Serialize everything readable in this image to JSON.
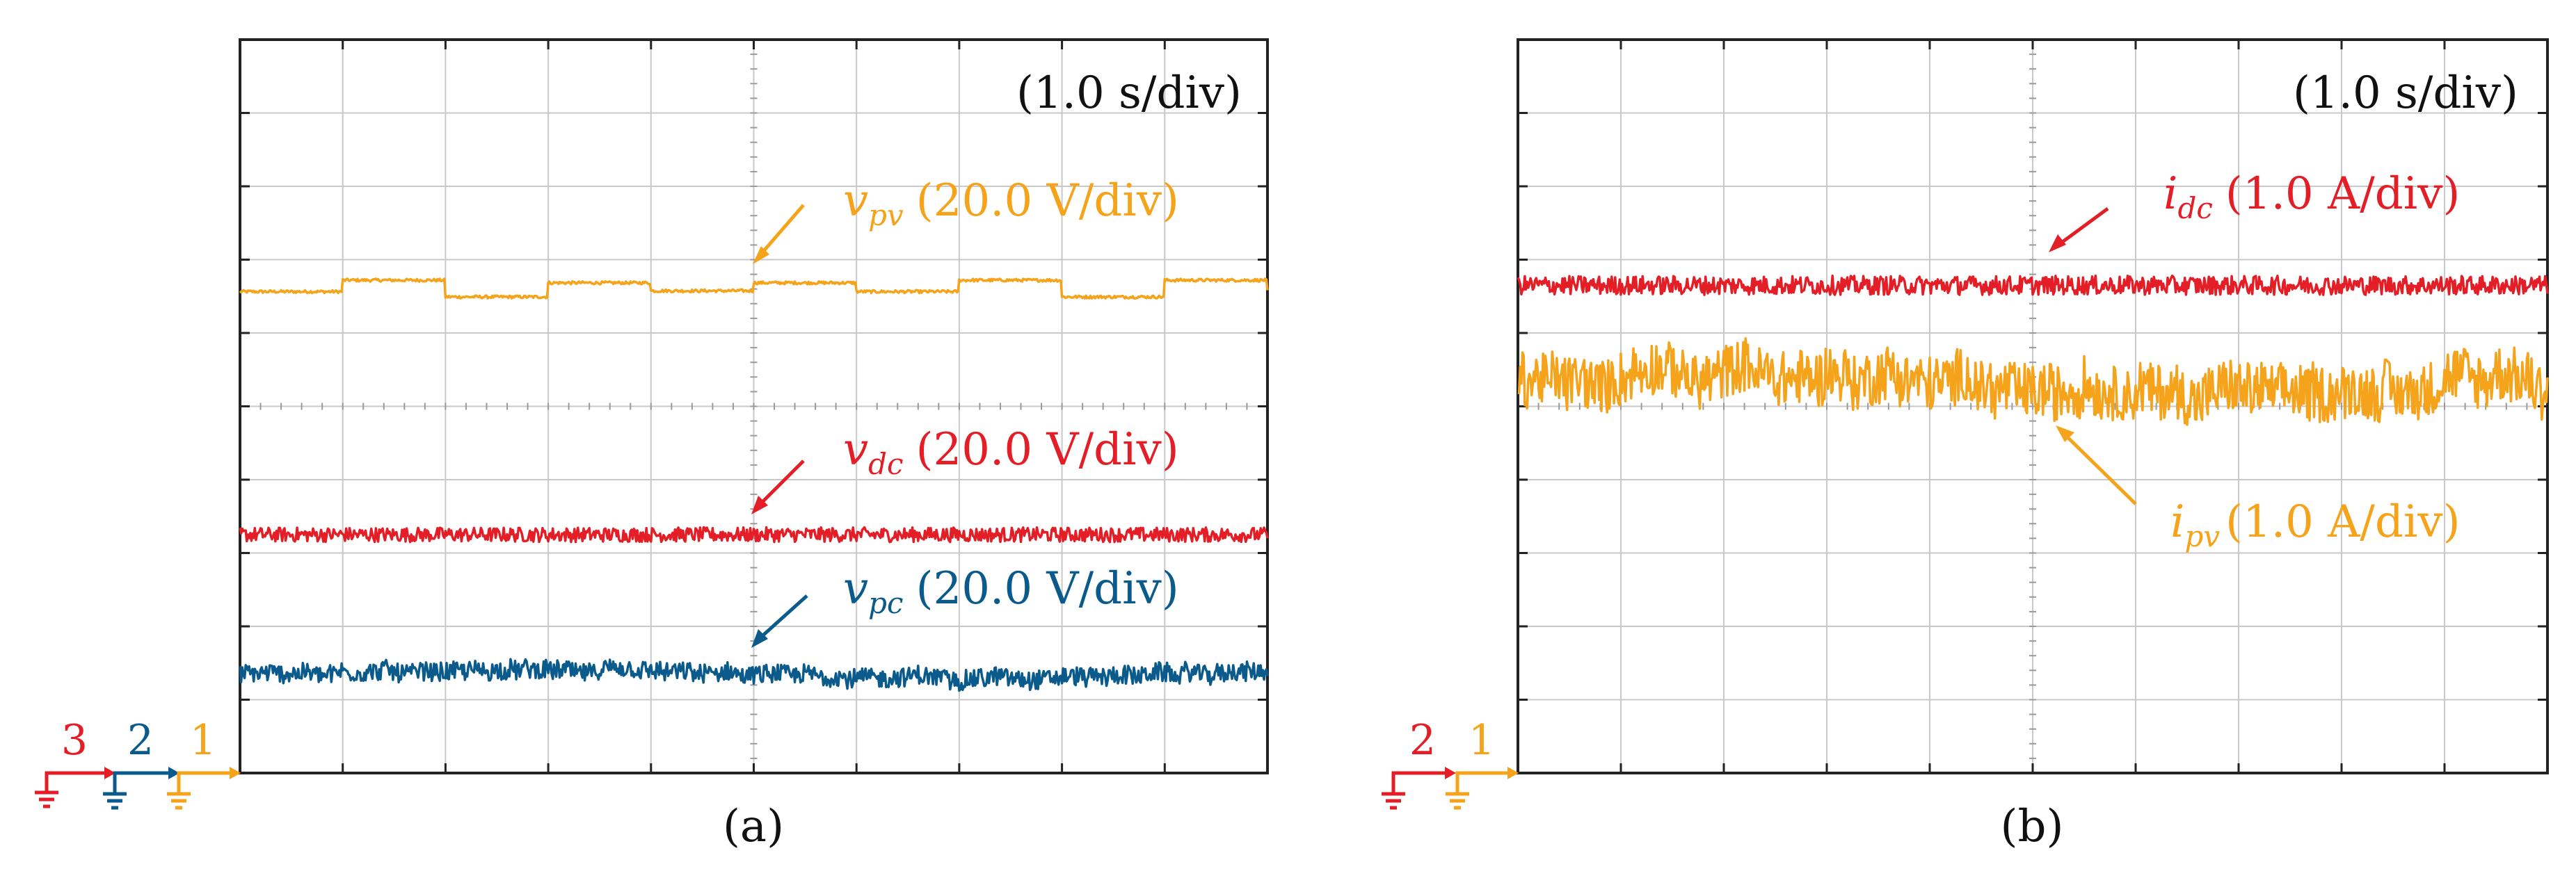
{
  "chart_data": [
    {
      "type": "line",
      "panel_label": "(a)",
      "time_base": "(1.0 s/div)",
      "x_divisions": 10,
      "y_divisions": 10,
      "grid": true,
      "series": [
        {
          "name": "v_pv",
          "symbol": "v",
          "subscript": "pv",
          "scale": "(20.0 V/div)",
          "channel": "1",
          "color": "#f5a31a",
          "waveform": "square-ripple",
          "level_div": 6.6,
          "step_div": 0.12,
          "noise_div": 0.02
        },
        {
          "name": "v_dc",
          "symbol": "v",
          "subscript": "dc",
          "scale": "(20.0 V/div)",
          "channel": "3",
          "color": "#e31e26",
          "waveform": "noise",
          "level_div": 3.25,
          "noise_div": 0.1
        },
        {
          "name": "v_pc",
          "symbol": "v",
          "subscript": "pc",
          "scale": "(20.0 V/div)",
          "channel": "2",
          "color": "#0a5a8c",
          "waveform": "noise-wander",
          "level_div": 1.35,
          "noise_div": 0.13
        }
      ],
      "channel_markers": [
        "3",
        "2",
        "1"
      ]
    },
    {
      "type": "line",
      "panel_label": "(b)",
      "time_base": "(1.0 s/div)",
      "x_divisions": 10,
      "y_divisions": 10,
      "grid": true,
      "series": [
        {
          "name": "i_dc",
          "symbol": "i",
          "subscript": "dc",
          "scale": "(1.0 A/div)",
          "channel": "2",
          "color": "#e31e26",
          "waveform": "noise",
          "level_div": 6.65,
          "noise_div": 0.13
        },
        {
          "name": "i_pv",
          "symbol": "i",
          "subscript": "pv",
          "scale": "(1.0 A/div)",
          "channel": "1",
          "color": "#f5a31a",
          "waveform": "noise-wander",
          "level_div": 5.3,
          "noise_div": 0.38
        }
      ],
      "channel_markers": [
        "2",
        "1"
      ]
    }
  ]
}
